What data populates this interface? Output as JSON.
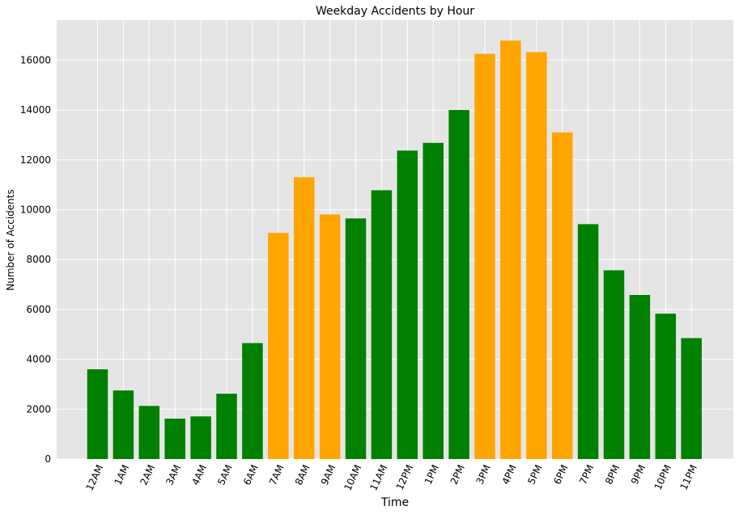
{
  "chart_data": {
    "type": "bar",
    "title": "Weekday Accidents by Hour",
    "xlabel": "Time",
    "ylabel": "Number of Accidents",
    "ylim": [
      0,
      17600
    ],
    "yticks": [
      0,
      2000,
      4000,
      6000,
      8000,
      10000,
      12000,
      14000,
      16000
    ],
    "grid": true,
    "legend": "none",
    "categories": [
      "12AM",
      "1AM",
      "2AM",
      "3AM",
      "4AM",
      "5AM",
      "6AM",
      "7AM",
      "8AM",
      "9AM",
      "10AM",
      "11AM",
      "12PM",
      "1PM",
      "2PM",
      "3PM",
      "4PM",
      "5PM",
      "6PM",
      "7PM",
      "8PM",
      "9PM",
      "10PM",
      "11PM"
    ],
    "values": [
      3600,
      2750,
      2130,
      1620,
      1710,
      2620,
      4650,
      9070,
      11300,
      9810,
      9650,
      10780,
      12370,
      12680,
      14000,
      16250,
      16780,
      16320,
      13100,
      9420,
      7570,
      6580,
      5830,
      4850
    ],
    "bar_colors": [
      "#008000",
      "#008000",
      "#008000",
      "#008000",
      "#008000",
      "#008000",
      "#008000",
      "#FFA500",
      "#FFA500",
      "#FFA500",
      "#008000",
      "#008000",
      "#008000",
      "#008000",
      "#008000",
      "#FFA500",
      "#FFA500",
      "#FFA500",
      "#FFA500",
      "#008000",
      "#008000",
      "#008000",
      "#008000",
      "#008000"
    ],
    "colors": {
      "background": "#E5E5E5",
      "grid": "#FFFFFF",
      "normal": "#008000",
      "rush_hour": "#FFA500"
    }
  }
}
